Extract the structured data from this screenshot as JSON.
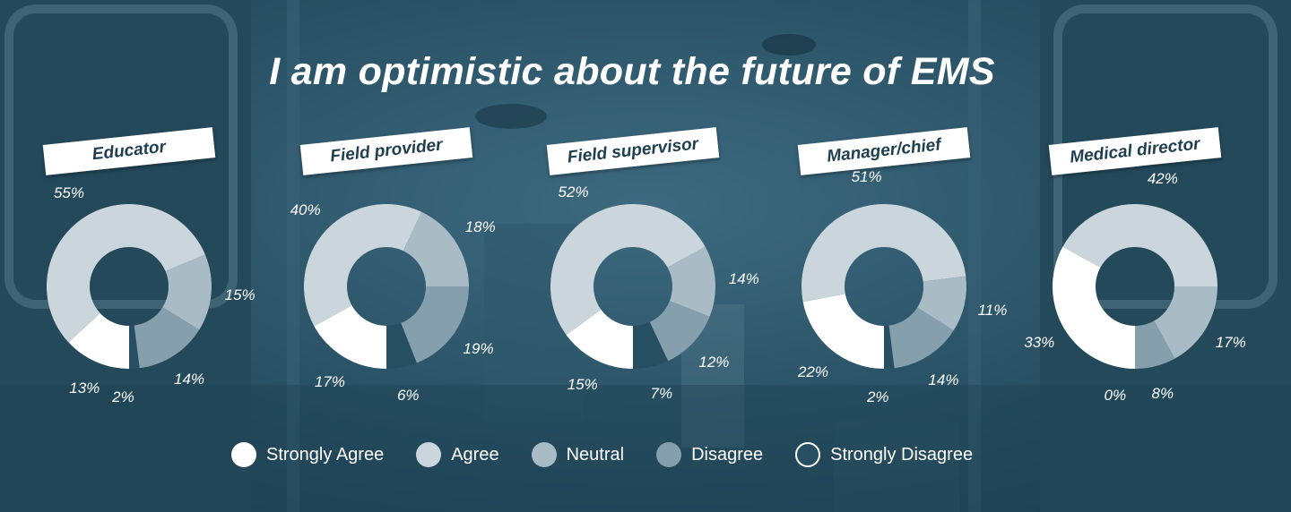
{
  "title": "I am optimistic about the future of EMS",
  "colors": {
    "Strongly Agree": "#ffffff",
    "Agree": "#cbd6dc",
    "Neutral": "#a9bcc6",
    "Disagree": "#869fad",
    "Strongly Disagree": "#264f62"
  },
  "legend": [
    {
      "label": "Strongly Agree"
    },
    {
      "label": "Agree"
    },
    {
      "label": "Neutral"
    },
    {
      "label": "Disagree"
    },
    {
      "label": "Strongly Disagree"
    }
  ],
  "chart_data": [
    {
      "type": "pie",
      "title": "Educator",
      "categories": [
        "Strongly Agree",
        "Agree",
        "Neutral",
        "Disagree",
        "Strongly Disagree"
      ],
      "values": [
        13,
        55,
        15,
        14,
        2
      ],
      "labels": [
        "13%",
        "55%",
        "15%",
        "14%",
        "2%"
      ]
    },
    {
      "type": "pie",
      "title": "Field provider",
      "categories": [
        "Strongly Agree",
        "Agree",
        "Neutral",
        "Disagree",
        "Strongly Disagree"
      ],
      "values": [
        17,
        40,
        18,
        19,
        6
      ],
      "labels": [
        "17%",
        "40%",
        "18%",
        "19%",
        "6%"
      ]
    },
    {
      "type": "pie",
      "title": "Field supervisor",
      "categories": [
        "Strongly Agree",
        "Agree",
        "Neutral",
        "Disagree",
        "Strongly Disagree"
      ],
      "values": [
        15,
        52,
        14,
        12,
        7
      ],
      "labels": [
        "15%",
        "52%",
        "14%",
        "12%",
        "7%"
      ]
    },
    {
      "type": "pie",
      "title": "Manager/chief",
      "categories": [
        "Strongly Agree",
        "Agree",
        "Neutral",
        "Disagree",
        "Strongly Disagree"
      ],
      "values": [
        22,
        51,
        11,
        14,
        2
      ],
      "labels": [
        "22%",
        "51%",
        "11%",
        "14%",
        "2%"
      ]
    },
    {
      "type": "pie",
      "title": "Medical director",
      "categories": [
        "Strongly Agree",
        "Agree",
        "Neutral",
        "Disagree",
        "Strongly Disagree"
      ],
      "values": [
        33,
        42,
        17,
        8,
        0
      ],
      "labels": [
        "33%",
        "42%",
        "17%",
        "8%",
        "0%"
      ]
    }
  ]
}
